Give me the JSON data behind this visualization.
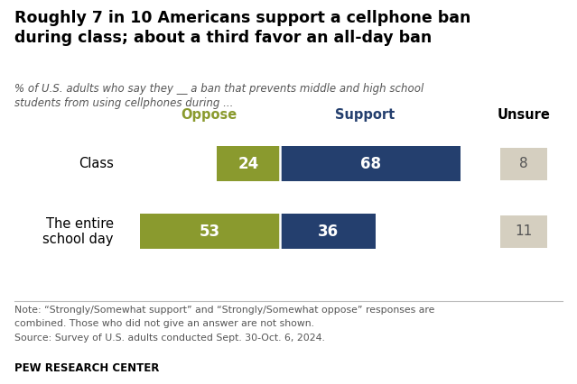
{
  "title": "Roughly 7 in 10 Americans support a cellphone ban\nduring class; about a third favor an all-day ban",
  "subtitle": "% of U.S. adults who say they __ a ban that prevents middle and high school\nstudents from using cellphones during ...",
  "categories": [
    "Class",
    "The entire\nschool day"
  ],
  "oppose": [
    24,
    53
  ],
  "support": [
    68,
    36
  ],
  "unsure": [
    8,
    11
  ],
  "oppose_color": "#8a9a2e",
  "support_color": "#243f6e",
  "unsure_color": "#d5cfc0",
  "note_line1": "Note: “Strongly/Somewhat support” and “Strongly/Somewhat oppose” responses are",
  "note_line2": "combined. Those who did not give an answer are not shown.",
  "note_line3": "Source: Survey of U.S. adults conducted Sept. 30-Oct. 6, 2024.",
  "footer": "PEW RESEARCH CENTER",
  "oppose_label": "Oppose",
  "support_label": "Support",
  "unsure_label": "Unsure",
  "background_color": "#ffffff",
  "title_fontsize": 12.5,
  "subtitle_fontsize": 8.5,
  "note_fontsize": 7.8,
  "footer_fontsize": 8.5,
  "bar_label_fontsize": 12,
  "header_fontsize": 10.5,
  "category_fontsize": 10.5
}
